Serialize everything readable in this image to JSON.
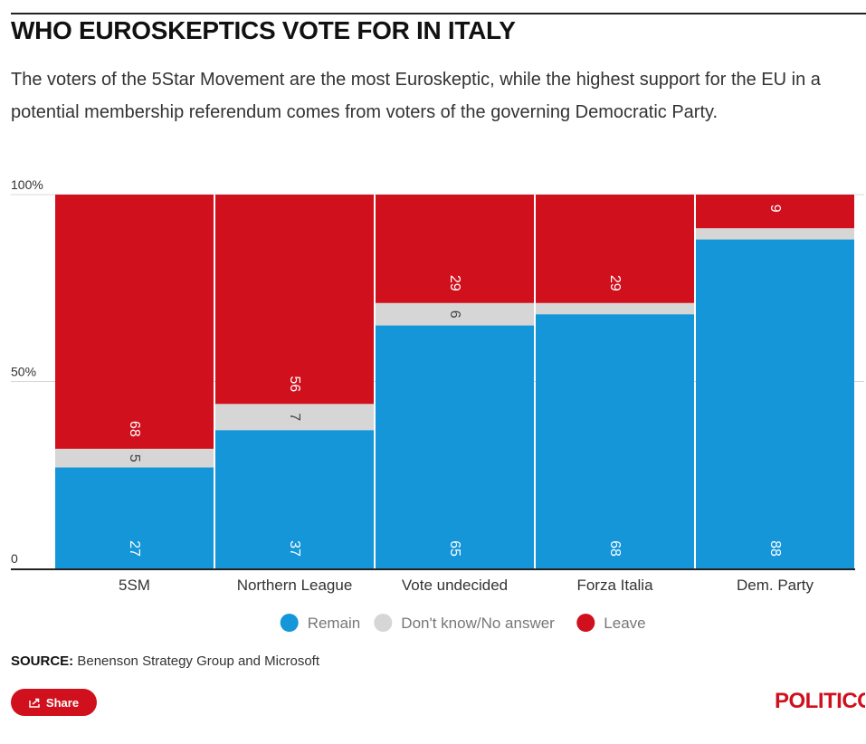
{
  "header": {
    "title": "WHO EUROSKEPTICS VOTE FOR IN ITALY",
    "subtitle": "The voters of the 5Star Movement are the most Euroskeptic, while the highest support for the EU in a potential membership referendum comes from voters of the governing Democratic Party."
  },
  "chart_data": {
    "type": "bar",
    "stacked": true,
    "categories": [
      "5SM",
      "Northern League",
      "Vote undecided",
      "Forza Italia",
      "Dem. Party"
    ],
    "series": [
      {
        "name": "Remain",
        "color": "#1496d8",
        "values": [
          27,
          37,
          65,
          68,
          88
        ],
        "labels": [
          "27",
          "37",
          "65",
          "68",
          "88"
        ]
      },
      {
        "name": "Don't know/No answer",
        "color": "#d6d6d6",
        "values": [
          5,
          7,
          6,
          3,
          3
        ],
        "labels": [
          "5",
          "7",
          "6",
          "",
          ""
        ]
      },
      {
        "name": "Leave",
        "color": "#d0101c",
        "values": [
          68,
          56,
          29,
          29,
          9
        ],
        "labels": [
          "68",
          "56",
          "29",
          "29",
          "9"
        ]
      }
    ],
    "y_ticks": [
      "0",
      "50%",
      "100%"
    ],
    "ylim": [
      0,
      100
    ],
    "legend_position": "bottom"
  },
  "footer": {
    "source_label": "SOURCE:",
    "source_text": "Benenson Strategy Group and Microsoft",
    "share_label": "Share",
    "logo": "POLITICO"
  },
  "colors": {
    "accent": "#d0101c",
    "remain": "#1496d8",
    "dont_know": "#d6d6d6",
    "leave": "#d0101c"
  },
  "icons": {
    "share": "share-icon"
  }
}
